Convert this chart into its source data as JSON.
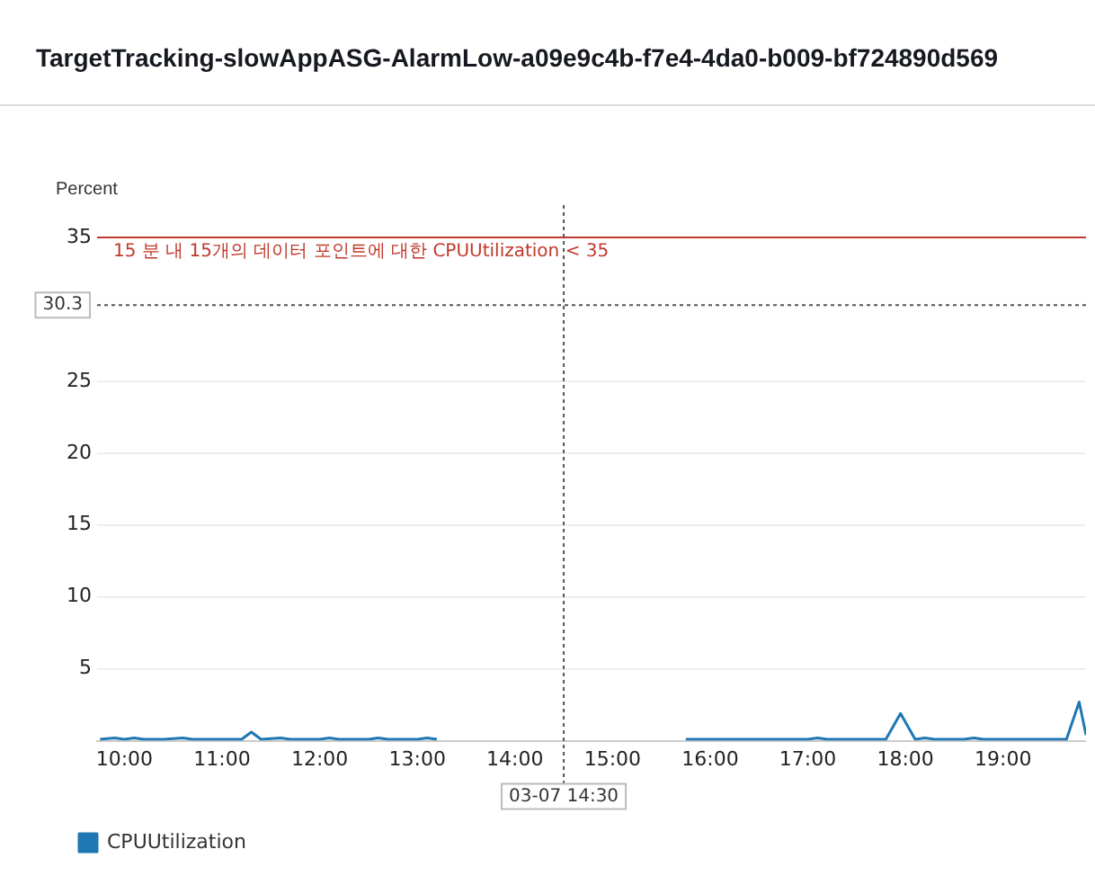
{
  "chart_data": {
    "type": "line",
    "title": "TargetTracking-slowAppASG-AlarmLow-a09e9c4b-f7e4-4da0-b009-bf724890d569",
    "ylabel": "Percent",
    "xlim": [
      9.72,
      19.85
    ],
    "ylim": [
      0,
      35
    ],
    "xticks": [
      {
        "value": 10,
        "label": "10:00"
      },
      {
        "value": 11,
        "label": "11:00"
      },
      {
        "value": 12,
        "label": "12:00"
      },
      {
        "value": 13,
        "label": "13:00"
      },
      {
        "value": 14,
        "label": "14:00"
      },
      {
        "value": 15,
        "label": "15:00"
      },
      {
        "value": 16,
        "label": "16:00"
      },
      {
        "value": 17,
        "label": "17:00"
      },
      {
        "value": 18,
        "label": "18:00"
      },
      {
        "value": 19,
        "label": "19:00"
      }
    ],
    "yticks": [
      5,
      10,
      15,
      20,
      25,
      35
    ],
    "grid": "y",
    "legend": "bottom left",
    "marker": "none",
    "line_style": "solid",
    "x": [
      9.75,
      9.9,
      10.0,
      10.1,
      10.2,
      10.4,
      10.6,
      10.7,
      11.0,
      11.2,
      11.3,
      11.4,
      11.6,
      11.7,
      12.0,
      12.1,
      12.2,
      12.5,
      12.6,
      12.7,
      13.0,
      13.1,
      13.2,
      14.0,
      15.75,
      16.0,
      16.5,
      17.0,
      17.1,
      17.2,
      17.8,
      17.95,
      18.1,
      18.2,
      18.3,
      18.6,
      18.7,
      18.8,
      19.5,
      19.65,
      19.78,
      19.85
    ],
    "series": [
      {
        "name": "CPUUtilization",
        "color": "#1f77b4",
        "values": [
          0.1,
          0.2,
          0.1,
          0.2,
          0.1,
          0.1,
          0.2,
          0.1,
          0.1,
          0.1,
          0.6,
          0.1,
          0.2,
          0.1,
          0.1,
          0.2,
          0.1,
          0.1,
          0.2,
          0.1,
          0.1,
          0.2,
          0.1,
          null,
          0.1,
          0.1,
          0.1,
          0.1,
          0.2,
          0.1,
          0.1,
          1.9,
          0.1,
          0.2,
          0.1,
          0.1,
          0.2,
          0.1,
          0.1,
          0.1,
          2.7,
          0.4
        ]
      }
    ],
    "ref_lines": [
      {
        "axis": "y",
        "value": 35,
        "label": "15 분 내 15개의 데이터 포인트에 대한 CPUUtilization < 35",
        "color": "#c0392b",
        "line_style": "solid"
      },
      {
        "axis": "y",
        "value": 30.3,
        "label": "30.3",
        "color": "#555555",
        "line_style": "dotted"
      },
      {
        "axis": "x",
        "value": 14.5,
        "label": "03-07 14:30",
        "color": "#555555",
        "line_style": "dotted"
      }
    ]
  }
}
